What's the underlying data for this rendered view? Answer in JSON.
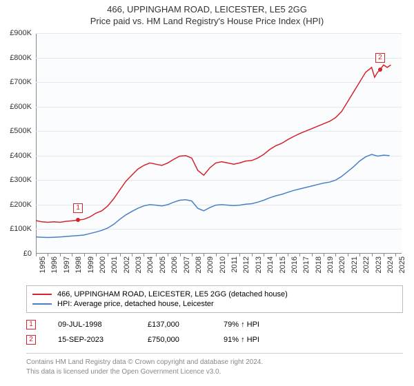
{
  "title": "466, UPPINGHAM ROAD, LEICESTER, LE5 2GG",
  "subtitle": "Price paid vs. HM Land Registry's House Price Index (HPI)",
  "chart": {
    "type": "line",
    "background_color": "#fbfcfd",
    "grid_color": "#e5e8ec",
    "axis_color": "#888888",
    "text_color": "#333333",
    "label_fontsize": 11,
    "title_fontsize": 13,
    "xlim": [
      1995,
      2025.5
    ],
    "ylim": [
      0,
      900000
    ],
    "ytick_step": 100000,
    "ytick_labels": [
      "£0",
      "£100K",
      "£200K",
      "£300K",
      "£400K",
      "£500K",
      "£600K",
      "£700K",
      "£800K",
      "£900K"
    ],
    "xtick_step": 1,
    "xtick_labels": [
      "1995",
      "1996",
      "1997",
      "1998",
      "1999",
      "2000",
      "2001",
      "2002",
      "2003",
      "2004",
      "2005",
      "2006",
      "2007",
      "2008",
      "2009",
      "2010",
      "2011",
      "2012",
      "2013",
      "2014",
      "2015",
      "2016",
      "2017",
      "2018",
      "2019",
      "2020",
      "2021",
      "2022",
      "2023",
      "2024",
      "2025"
    ],
    "series": [
      {
        "name": "466, UPPINGHAM ROAD, LEICESTER, LE5 2GG (detached house)",
        "color": "#d6222b",
        "line_width": 1.5,
        "points": [
          [
            1995,
            135000
          ],
          [
            1995.5,
            130000
          ],
          [
            1996,
            128000
          ],
          [
            1996.5,
            130000
          ],
          [
            1997,
            128000
          ],
          [
            1997.5,
            132000
          ],
          [
            1998,
            134000
          ],
          [
            1998.5,
            137000
          ],
          [
            1999,
            140000
          ],
          [
            1999.5,
            150000
          ],
          [
            2000,
            165000
          ],
          [
            2000.5,
            175000
          ],
          [
            2001,
            195000
          ],
          [
            2001.5,
            225000
          ],
          [
            2002,
            260000
          ],
          [
            2002.5,
            295000
          ],
          [
            2003,
            320000
          ],
          [
            2003.5,
            345000
          ],
          [
            2004,
            360000
          ],
          [
            2004.5,
            370000
          ],
          [
            2005,
            365000
          ],
          [
            2005.5,
            360000
          ],
          [
            2006,
            370000
          ],
          [
            2006.5,
            385000
          ],
          [
            2007,
            398000
          ],
          [
            2007.5,
            400000
          ],
          [
            2008,
            390000
          ],
          [
            2008.5,
            340000
          ],
          [
            2009,
            320000
          ],
          [
            2009.5,
            350000
          ],
          [
            2010,
            370000
          ],
          [
            2010.5,
            375000
          ],
          [
            2011,
            370000
          ],
          [
            2011.5,
            365000
          ],
          [
            2012,
            370000
          ],
          [
            2012.5,
            378000
          ],
          [
            2013,
            380000
          ],
          [
            2013.5,
            390000
          ],
          [
            2014,
            405000
          ],
          [
            2014.5,
            425000
          ],
          [
            2015,
            440000
          ],
          [
            2015.5,
            450000
          ],
          [
            2016,
            465000
          ],
          [
            2016.5,
            478000
          ],
          [
            2017,
            490000
          ],
          [
            2017.5,
            500000
          ],
          [
            2018,
            510000
          ],
          [
            2018.5,
            520000
          ],
          [
            2019,
            530000
          ],
          [
            2019.5,
            540000
          ],
          [
            2020,
            555000
          ],
          [
            2020.5,
            580000
          ],
          [
            2021,
            620000
          ],
          [
            2021.5,
            660000
          ],
          [
            2022,
            700000
          ],
          [
            2022.5,
            740000
          ],
          [
            2023,
            760000
          ],
          [
            2023.25,
            720000
          ],
          [
            2023.5,
            740000
          ],
          [
            2023.7,
            750000
          ],
          [
            2024,
            770000
          ],
          [
            2024.3,
            760000
          ],
          [
            2024.6,
            770000
          ]
        ]
      },
      {
        "name": "HPI: Average price, detached house, Leicester",
        "color": "#4a7fc4",
        "line_width": 1.5,
        "points": [
          [
            1995,
            68000
          ],
          [
            1995.5,
            67000
          ],
          [
            1996,
            66000
          ],
          [
            1996.5,
            67000
          ],
          [
            1997,
            68000
          ],
          [
            1997.5,
            70000
          ],
          [
            1998,
            72000
          ],
          [
            1998.5,
            74000
          ],
          [
            1999,
            76000
          ],
          [
            1999.5,
            82000
          ],
          [
            2000,
            88000
          ],
          [
            2000.5,
            95000
          ],
          [
            2001,
            105000
          ],
          [
            2001.5,
            120000
          ],
          [
            2002,
            140000
          ],
          [
            2002.5,
            158000
          ],
          [
            2003,
            172000
          ],
          [
            2003.5,
            185000
          ],
          [
            2004,
            195000
          ],
          [
            2004.5,
            200000
          ],
          [
            2005,
            198000
          ],
          [
            2005.5,
            195000
          ],
          [
            2006,
            200000
          ],
          [
            2006.5,
            210000
          ],
          [
            2007,
            218000
          ],
          [
            2007.5,
            220000
          ],
          [
            2008,
            215000
          ],
          [
            2008.5,
            185000
          ],
          [
            2009,
            175000
          ],
          [
            2009.5,
            188000
          ],
          [
            2010,
            198000
          ],
          [
            2010.5,
            200000
          ],
          [
            2011,
            198000
          ],
          [
            2011.5,
            196000
          ],
          [
            2012,
            198000
          ],
          [
            2012.5,
            202000
          ],
          [
            2013,
            204000
          ],
          [
            2013.5,
            210000
          ],
          [
            2014,
            218000
          ],
          [
            2014.5,
            228000
          ],
          [
            2015,
            236000
          ],
          [
            2015.5,
            242000
          ],
          [
            2016,
            250000
          ],
          [
            2016.5,
            258000
          ],
          [
            2017,
            264000
          ],
          [
            2017.5,
            270000
          ],
          [
            2018,
            276000
          ],
          [
            2018.5,
            282000
          ],
          [
            2019,
            288000
          ],
          [
            2019.5,
            292000
          ],
          [
            2020,
            300000
          ],
          [
            2020.5,
            315000
          ],
          [
            2021,
            335000
          ],
          [
            2021.5,
            355000
          ],
          [
            2022,
            378000
          ],
          [
            2022.5,
            395000
          ],
          [
            2023,
            405000
          ],
          [
            2023.5,
            398000
          ],
          [
            2024,
            402000
          ],
          [
            2024.5,
            400000
          ]
        ]
      }
    ],
    "sale_markers": [
      {
        "n": "1",
        "x": 1998.52,
        "y": 137000,
        "color": "#d6222b"
      },
      {
        "n": "2",
        "x": 2023.71,
        "y": 750000,
        "color": "#d6222b"
      }
    ]
  },
  "legend": {
    "items": [
      {
        "color": "#d6222b",
        "label": "466, UPPINGHAM ROAD, LEICESTER, LE5 2GG (detached house)"
      },
      {
        "color": "#4a7fc4",
        "label": "HPI: Average price, detached house, Leicester"
      }
    ]
  },
  "sales": [
    {
      "n": "1",
      "color": "#d6222b",
      "date": "09-JUL-1998",
      "price": "£137,000",
      "pct": "79%",
      "arrow": "↑",
      "suffix": "HPI"
    },
    {
      "n": "2",
      "color": "#d6222b",
      "date": "15-SEP-2023",
      "price": "£750,000",
      "pct": "91%",
      "arrow": "↑",
      "suffix": "HPI"
    }
  ],
  "footer": {
    "line1": "Contains HM Land Registry data © Crown copyright and database right 2024.",
    "line2": "This data is licensed under the Open Government Licence v3.0."
  }
}
